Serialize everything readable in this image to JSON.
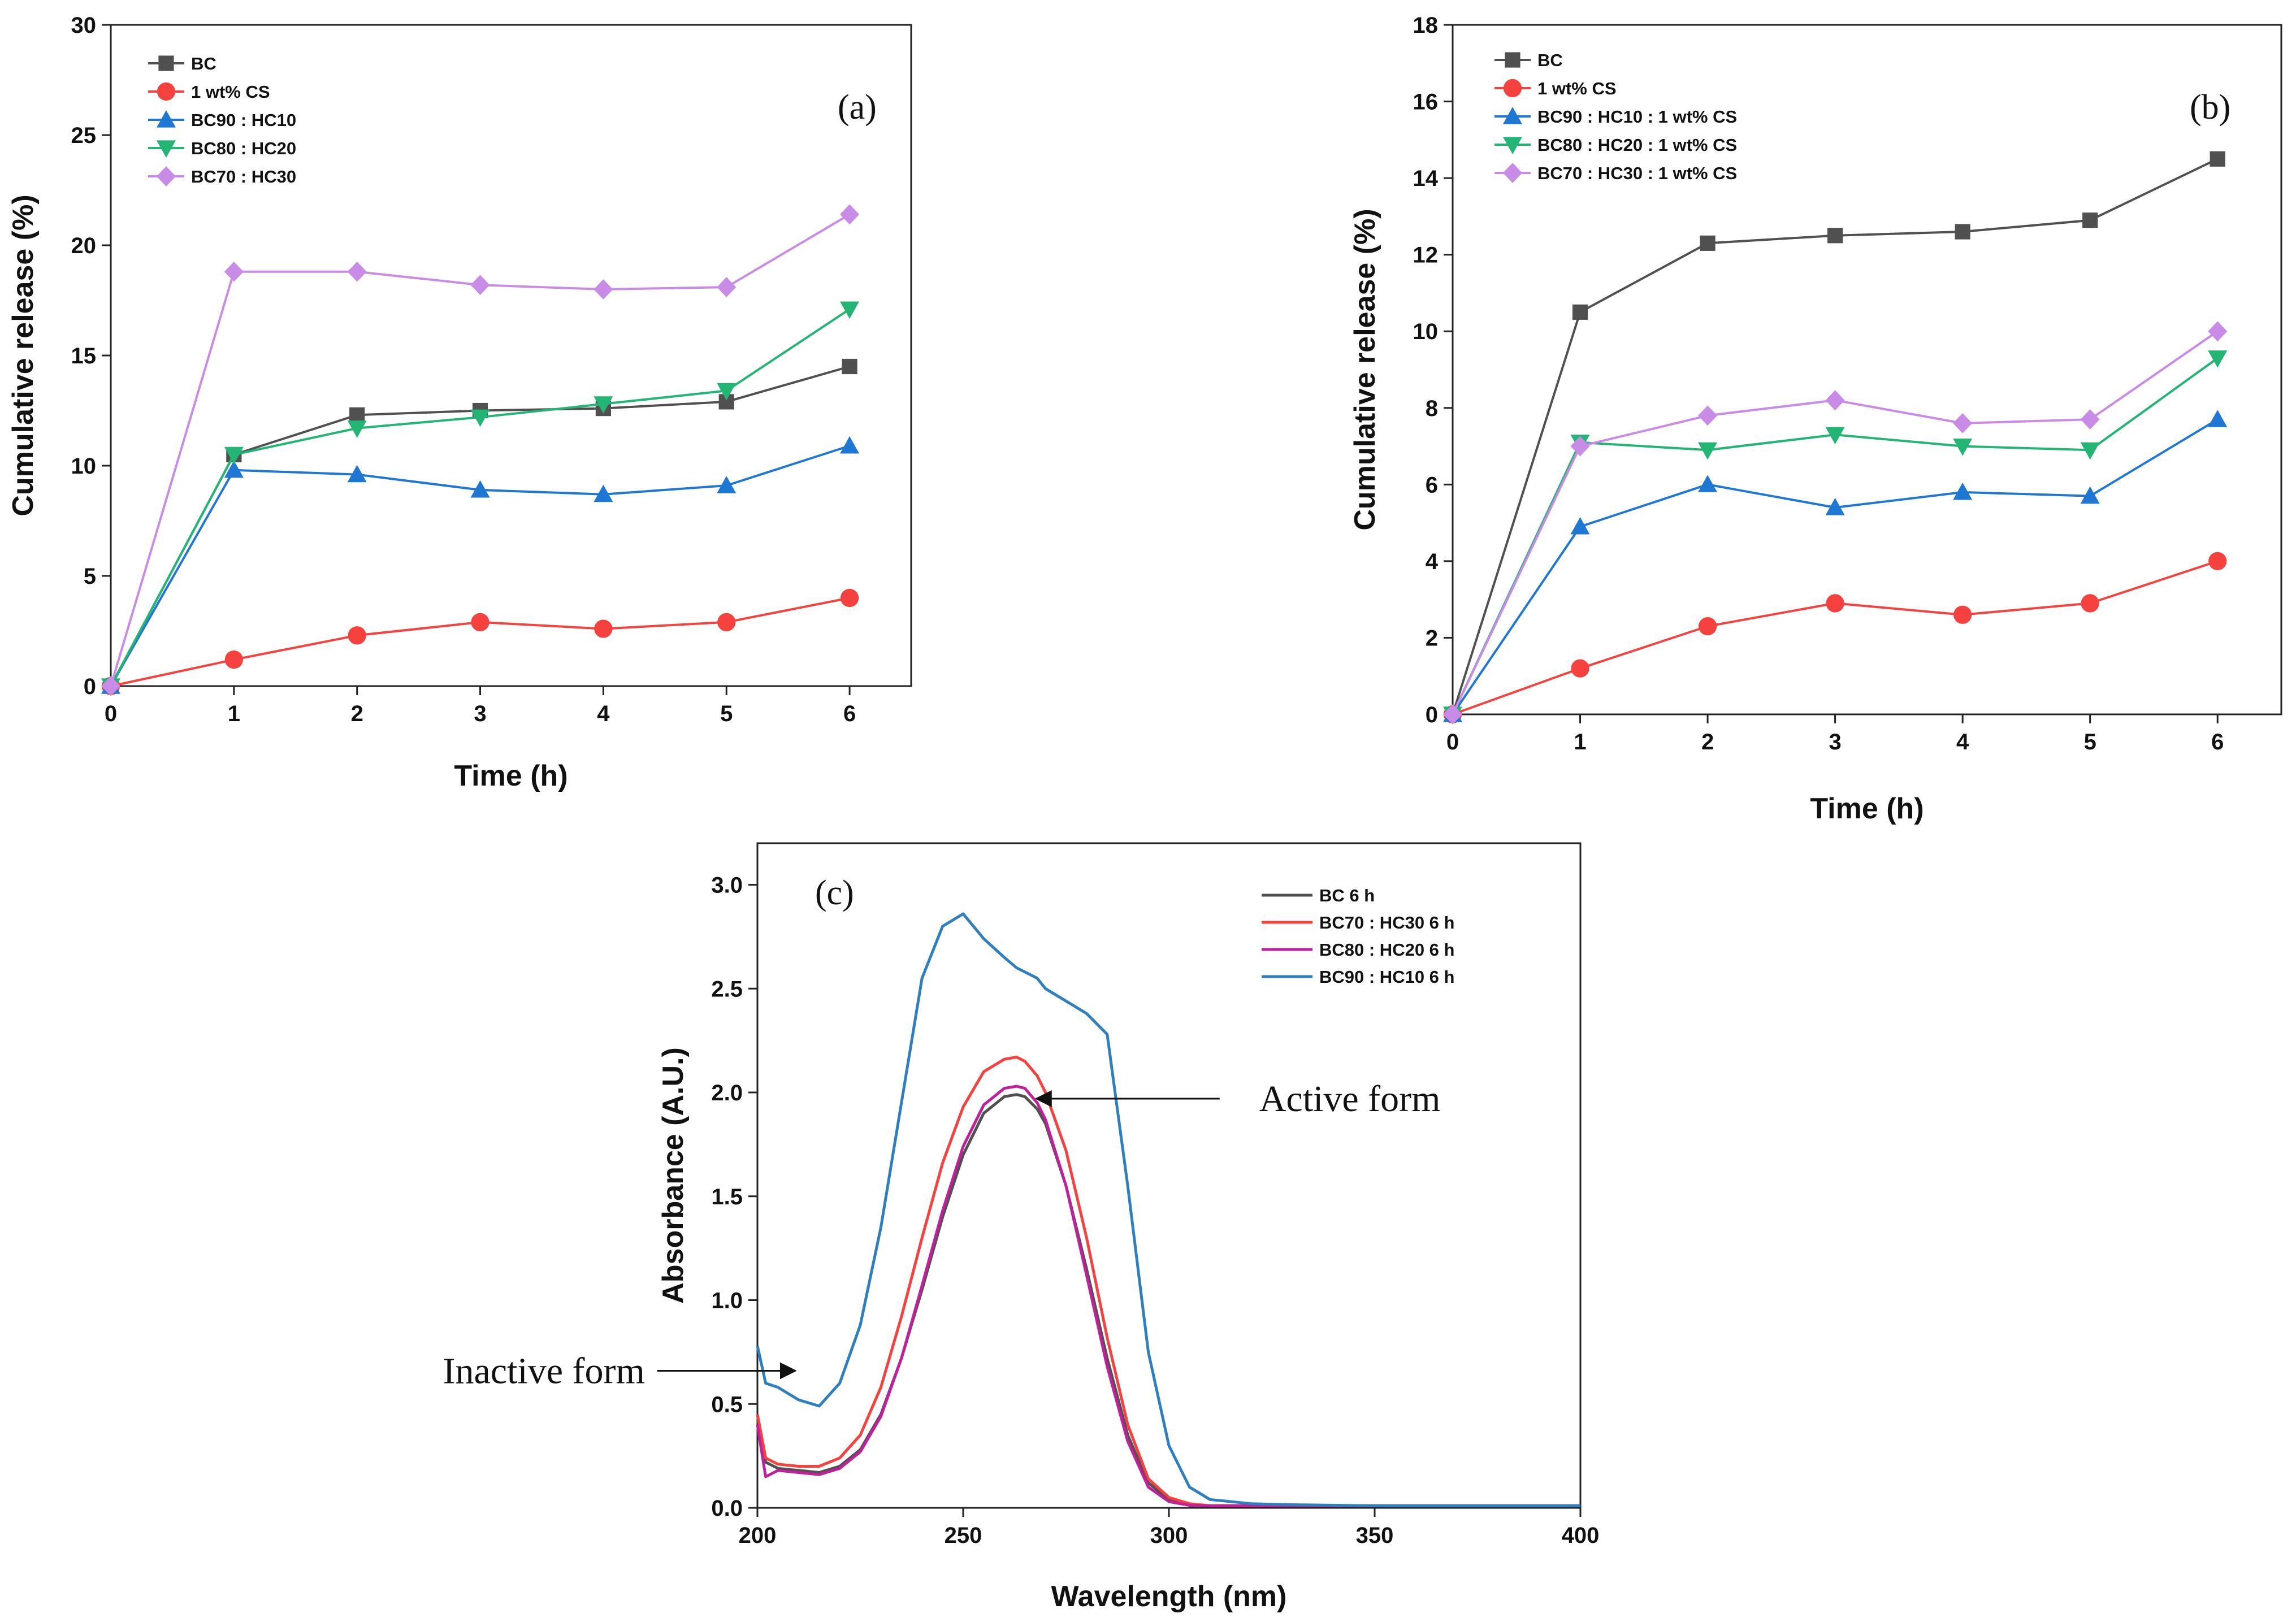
{
  "chart_data": [
    {
      "type": "line",
      "panel_label": "(a)",
      "xlabel": "Time (h)",
      "ylabel": "Cumulative release (%)",
      "xlim": [
        0,
        6.5
      ],
      "ylim": [
        0,
        30
      ],
      "xticks": [
        0,
        1,
        2,
        3,
        4,
        5,
        6
      ],
      "yticks": [
        0,
        5,
        10,
        15,
        20,
        25,
        30
      ],
      "legend_position": "top-left",
      "x": [
        0,
        1,
        2,
        3,
        4,
        5,
        6
      ],
      "series": [
        {
          "name": "BC",
          "color": "#505050",
          "marker": "square",
          "values": [
            0,
            10.5,
            12.3,
            12.5,
            12.6,
            12.9,
            14.5
          ]
        },
        {
          "name": "1 wt% CS",
          "color": "#f5423f",
          "marker": "circle",
          "values": [
            0,
            1.2,
            2.3,
            2.9,
            2.6,
            2.9,
            4.0
          ]
        },
        {
          "name": "BC90 : HC10",
          "color": "#1f77d4",
          "marker": "triangle-up",
          "values": [
            0,
            9.8,
            9.6,
            8.9,
            8.7,
            9.1,
            10.9
          ]
        },
        {
          "name": "BC80 : HC20",
          "color": "#22b573",
          "marker": "triangle-down",
          "values": [
            0,
            10.5,
            11.7,
            12.2,
            12.8,
            13.4,
            17.1
          ]
        },
        {
          "name": "BC70 : HC30",
          "color": "#c88ce6",
          "marker": "diamond",
          "values": [
            0,
            18.8,
            18.8,
            18.2,
            18.0,
            18.1,
            21.4
          ]
        }
      ]
    },
    {
      "type": "line",
      "panel_label": "(b)",
      "xlabel": "Time (h)",
      "ylabel": "Cumulative release (%)",
      "xlim": [
        0,
        6.5
      ],
      "ylim": [
        0,
        18
      ],
      "xticks": [
        0,
        1,
        2,
        3,
        4,
        5,
        6
      ],
      "yticks": [
        0,
        2,
        4,
        6,
        8,
        10,
        12,
        14,
        16,
        18
      ],
      "legend_position": "top-left",
      "x": [
        0,
        1,
        2,
        3,
        4,
        5,
        6
      ],
      "series": [
        {
          "name": "BC",
          "color": "#505050",
          "marker": "square",
          "values": [
            0,
            10.5,
            12.3,
            12.5,
            12.6,
            12.9,
            14.5
          ]
        },
        {
          "name": "1 wt% CS",
          "color": "#f5423f",
          "marker": "circle",
          "values": [
            0,
            1.2,
            2.3,
            2.9,
            2.6,
            2.9,
            4.0
          ]
        },
        {
          "name": "BC90 : HC10 : 1 wt% CS",
          "color": "#1f77d4",
          "marker": "triangle-up",
          "values": [
            0,
            4.9,
            6.0,
            5.4,
            5.8,
            5.7,
            7.7
          ]
        },
        {
          "name": "BC80 : HC20 : 1 wt% CS",
          "color": "#22b573",
          "marker": "triangle-down",
          "values": [
            0,
            7.1,
            6.9,
            7.3,
            7.0,
            6.9,
            9.3
          ]
        },
        {
          "name": "BC70 : HC30 : 1 wt% CS",
          "color": "#c88ce6",
          "marker": "diamond",
          "values": [
            0,
            7.0,
            7.8,
            8.2,
            7.6,
            7.7,
            10.0
          ]
        }
      ]
    },
    {
      "type": "line",
      "panel_label": "(c)",
      "xlabel": "Wavelength (nm)",
      "ylabel": "Absorbance (A.U.)",
      "xlim": [
        200,
        400
      ],
      "ylim": [
        0,
        3.2
      ],
      "xticks": [
        200,
        250,
        300,
        350,
        400
      ],
      "yticks": [
        0.0,
        0.5,
        1.0,
        1.5,
        2.0,
        2.5,
        3.0
      ],
      "ytick_labels": [
        "0.0",
        "0.5",
        "1.0",
        "1.5",
        "2.0",
        "2.5",
        "3.0"
      ],
      "legend_position": "top-right",
      "x": [
        200,
        202,
        205,
        210,
        215,
        220,
        225,
        230,
        235,
        240,
        245,
        250,
        255,
        260,
        263,
        265,
        268,
        270,
        275,
        280,
        285,
        290,
        295,
        300,
        305,
        310,
        320,
        330,
        350,
        380,
        400
      ],
      "series": [
        {
          "name": "BC 6 h",
          "color": "#505050",
          "values": [
            0.45,
            0.22,
            0.19,
            0.18,
            0.17,
            0.2,
            0.28,
            0.45,
            0.72,
            1.05,
            1.4,
            1.7,
            1.9,
            1.98,
            1.99,
            1.98,
            1.92,
            1.85,
            1.55,
            1.15,
            0.72,
            0.35,
            0.12,
            0.04,
            0.015,
            0.01,
            0.01,
            0.01,
            0.01,
            0.01,
            0.01
          ]
        },
        {
          "name": "BC70 : HC30 6 h",
          "color": "#f5423f",
          "values": [
            0.45,
            0.24,
            0.21,
            0.2,
            0.2,
            0.24,
            0.35,
            0.58,
            0.92,
            1.3,
            1.66,
            1.93,
            2.1,
            2.16,
            2.17,
            2.15,
            2.08,
            2.0,
            1.72,
            1.3,
            0.82,
            0.4,
            0.14,
            0.05,
            0.02,
            0.01,
            0.01,
            0.01,
            0.01,
            0.01,
            0.01
          ]
        },
        {
          "name": "BC80 : HC20 6 h",
          "color": "#c0219b",
          "values": [
            0.4,
            0.15,
            0.18,
            0.17,
            0.16,
            0.19,
            0.27,
            0.44,
            0.72,
            1.07,
            1.43,
            1.74,
            1.94,
            2.02,
            2.03,
            2.02,
            1.95,
            1.87,
            1.55,
            1.12,
            0.68,
            0.32,
            0.1,
            0.03,
            0.012,
            0.01,
            0.01,
            0.01,
            0.01,
            0.01,
            0.01
          ]
        },
        {
          "name": "BC90 : HC10 6 h",
          "color": "#2e7fc0",
          "values": [
            0.78,
            0.6,
            0.58,
            0.52,
            0.49,
            0.6,
            0.88,
            1.35,
            1.95,
            2.55,
            2.8,
            2.86,
            2.74,
            2.65,
            2.6,
            2.58,
            2.55,
            2.5,
            2.44,
            2.38,
            2.28,
            1.55,
            0.75,
            0.3,
            0.1,
            0.04,
            0.02,
            0.015,
            0.01,
            0.01,
            0.01
          ]
        }
      ],
      "annotations": [
        {
          "text": "Active form",
          "target_x": 267,
          "target_y": 1.97
        },
        {
          "text": "Inactive form",
          "target_x": 210,
          "target_y": 0.66
        }
      ]
    }
  ]
}
